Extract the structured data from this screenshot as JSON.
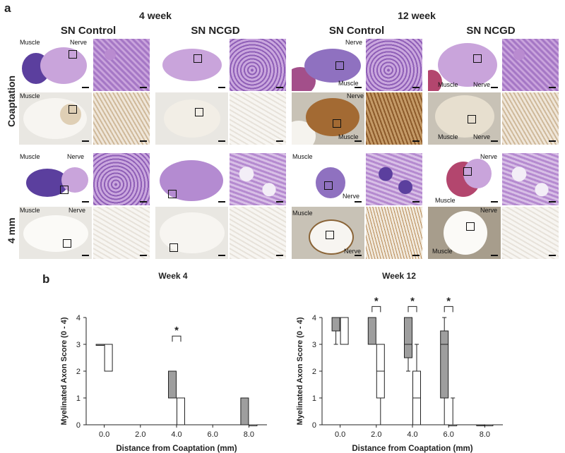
{
  "panel_a": {
    "letter": "a",
    "weeks": [
      "4 week",
      "12 week"
    ],
    "groups": [
      "SN Control",
      "SN NCGD",
      "SN Control",
      "SN NCGD"
    ],
    "rows": [
      "Coaptation",
      "4 mm"
    ],
    "annotations": {
      "muscle": "Muscle",
      "nerve": "Nerve"
    }
  },
  "panel_b": {
    "letter": "b"
  },
  "chart_data": [
    {
      "type": "box",
      "title": "Week 4",
      "xlabel": "Distance from Coaptation (mm)",
      "ylabel": "Myelinated Axon Score (0 - 4)",
      "xlim": [
        -1,
        9
      ],
      "ylim": [
        0,
        4
      ],
      "xticks": [
        "0.0",
        "2.0",
        "4.0",
        "6.0",
        "8.0"
      ],
      "yticks": [
        "0",
        "1",
        "2",
        "3",
        "4"
      ],
      "significance_label": "*",
      "series": [
        {
          "name": "",
          "fill": "#9e9e9e",
          "boxes": [
            {
              "x": 0,
              "min": 3,
              "q1": 3,
              "median": 3,
              "q3": 3,
              "max": 3
            },
            {
              "x": 4,
              "min": 1,
              "q1": 1,
              "median": 2,
              "q3": 2,
              "max": 2
            },
            {
              "x": 8,
              "min": 0,
              "q1": 0,
              "median": 1,
              "q3": 1,
              "max": 1
            }
          ]
        },
        {
          "name": "",
          "fill": "#ffffff",
          "boxes": [
            {
              "x": 0,
              "min": 2,
              "q1": 2,
              "median": 3,
              "q3": 3,
              "max": 3
            },
            {
              "x": 4,
              "min": 0,
              "q1": 0,
              "median": 0,
              "q3": 1,
              "max": 1
            },
            {
              "x": 8,
              "min": 0,
              "q1": 0,
              "median": 0,
              "q3": 0,
              "max": 0
            }
          ]
        }
      ],
      "significance_at": [
        4
      ]
    },
    {
      "type": "box",
      "title": "Week 12",
      "xlabel": "Distance from Coaptation (mm)",
      "ylabel": "Myelinated Axon Score (0 - 4)",
      "xlim": [
        -1,
        9
      ],
      "ylim": [
        0,
        4
      ],
      "xticks": [
        "0.0",
        "2.0",
        "4.0",
        "6.0",
        "8.0"
      ],
      "yticks": [
        "0",
        "1",
        "2",
        "3",
        "4"
      ],
      "significance_label": "*",
      "series": [
        {
          "name": "",
          "fill": "#9e9e9e",
          "boxes": [
            {
              "x": 0,
              "min": 3,
              "q1": 3.5,
              "median": 4,
              "q3": 4,
              "max": 4
            },
            {
              "x": 2,
              "min": 3,
              "q1": 3,
              "median": 4,
              "q3": 4,
              "max": 4
            },
            {
              "x": 4,
              "min": 2,
              "q1": 2.5,
              "median": 3,
              "q3": 4,
              "max": 4
            },
            {
              "x": 6,
              "min": 0,
              "q1": 1,
              "median": 3,
              "q3": 3.5,
              "max": 4
            },
            {
              "x": 8,
              "min": 0,
              "q1": 0,
              "median": 0,
              "q3": 0,
              "max": 0
            }
          ]
        },
        {
          "name": "",
          "fill": "#ffffff",
          "boxes": [
            {
              "x": 0,
              "min": 3,
              "q1": 3,
              "median": 4,
              "q3": 4,
              "max": 4
            },
            {
              "x": 2,
              "min": 0,
              "q1": 1,
              "median": 2,
              "q3": 3,
              "max": 3
            },
            {
              "x": 4,
              "min": 0,
              "q1": 0,
              "median": 1,
              "q3": 2,
              "max": 3
            },
            {
              "x": 6,
              "min": 0,
              "q1": 0,
              "median": 0,
              "q3": 0,
              "max": 1
            },
            {
              "x": 8,
              "min": 0,
              "q1": 0,
              "median": 0,
              "q3": 0,
              "max": 0
            }
          ]
        }
      ],
      "significance_at": [
        2,
        4,
        6
      ]
    }
  ]
}
